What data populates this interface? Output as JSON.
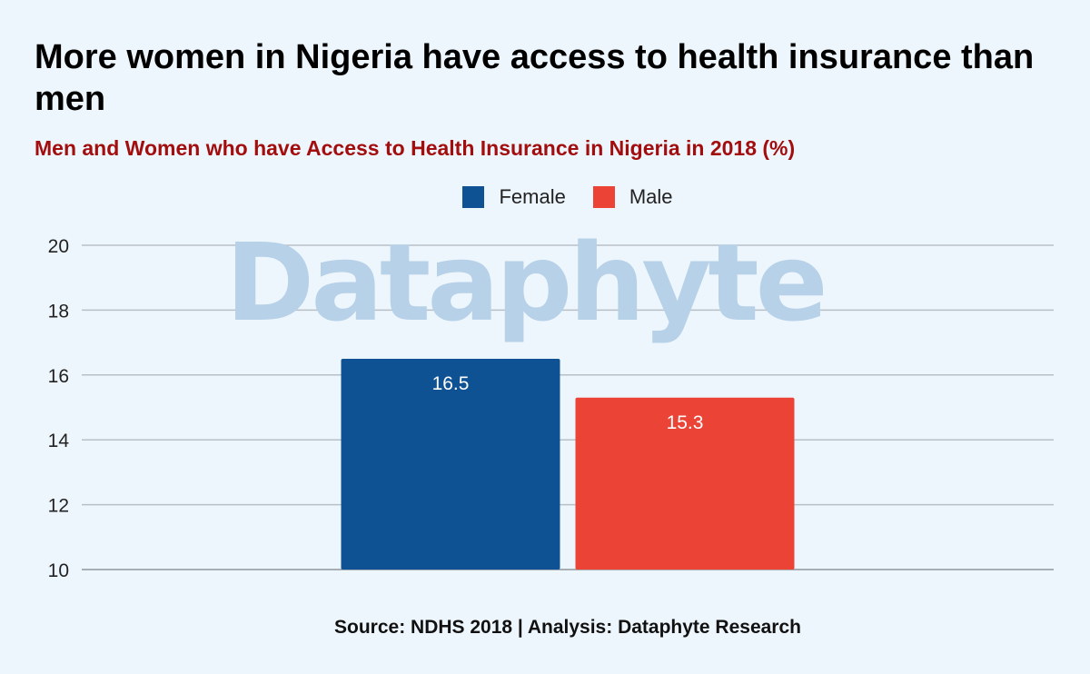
{
  "title": "More women in Nigeria have access to health insurance than men",
  "subtitle": "Men and Women who have Access to Health Insurance in Nigeria in 2018 (%)",
  "watermark": "Dataphyte",
  "source": "Source: NDHS 2018 | Analysis: Dataphyte Research",
  "chart_data": {
    "type": "bar",
    "series": [
      {
        "name": "Female",
        "values": [
          16.5
        ],
        "color": "#0e5294"
      },
      {
        "name": "Male",
        "values": [
          15.3
        ],
        "color": "#eb4335"
      }
    ],
    "data_labels": [
      "16.5",
      "15.3"
    ],
    "ylim": [
      10,
      20
    ],
    "yticks": [
      10,
      12,
      14,
      16,
      18,
      20
    ],
    "grid": true,
    "legend_position": "top"
  }
}
